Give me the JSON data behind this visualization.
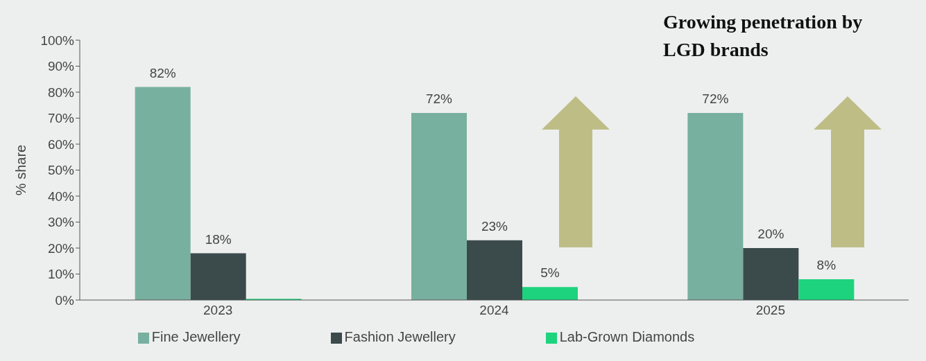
{
  "chart_data": {
    "type": "bar",
    "title": "Growing penetration by LGD brands",
    "ylabel": "% share",
    "categories": [
      "2023",
      "2024",
      "2025"
    ],
    "series": [
      {
        "name": "Fine Jewellery",
        "color": "#78b09f",
        "values": [
          82,
          72,
          72
        ],
        "value_labels": [
          "82%",
          "72%",
          "72%"
        ]
      },
      {
        "name": "Fashion Jewellery",
        "color": "#3b4a4a",
        "values": [
          18,
          23,
          20
        ],
        "value_labels": [
          "18%",
          "23%",
          "20%"
        ]
      },
      {
        "name": "Lab-Grown Diamonds",
        "color": "#1ed37e",
        "values": [
          0.5,
          5,
          8
        ],
        "value_labels": [
          null,
          "5%",
          "8%"
        ]
      }
    ],
    "ylim": [
      0,
      100
    ],
    "yticks": [
      {
        "value": 0,
        "label": "0%"
      },
      {
        "value": 10,
        "label": "10%"
      },
      {
        "value": 20,
        "label": "20%"
      },
      {
        "value": 30,
        "label": "30%"
      },
      {
        "value": 40,
        "label": "40%"
      },
      {
        "value": 50,
        "label": "50%"
      },
      {
        "value": 60,
        "label": "60%"
      },
      {
        "value": 70,
        "label": "70%"
      },
      {
        "value": 80,
        "label": "80%"
      },
      {
        "value": 90,
        "label": "90%"
      },
      {
        "value": 100,
        "label": "100%"
      }
    ],
    "legend": "bottom"
  }
}
